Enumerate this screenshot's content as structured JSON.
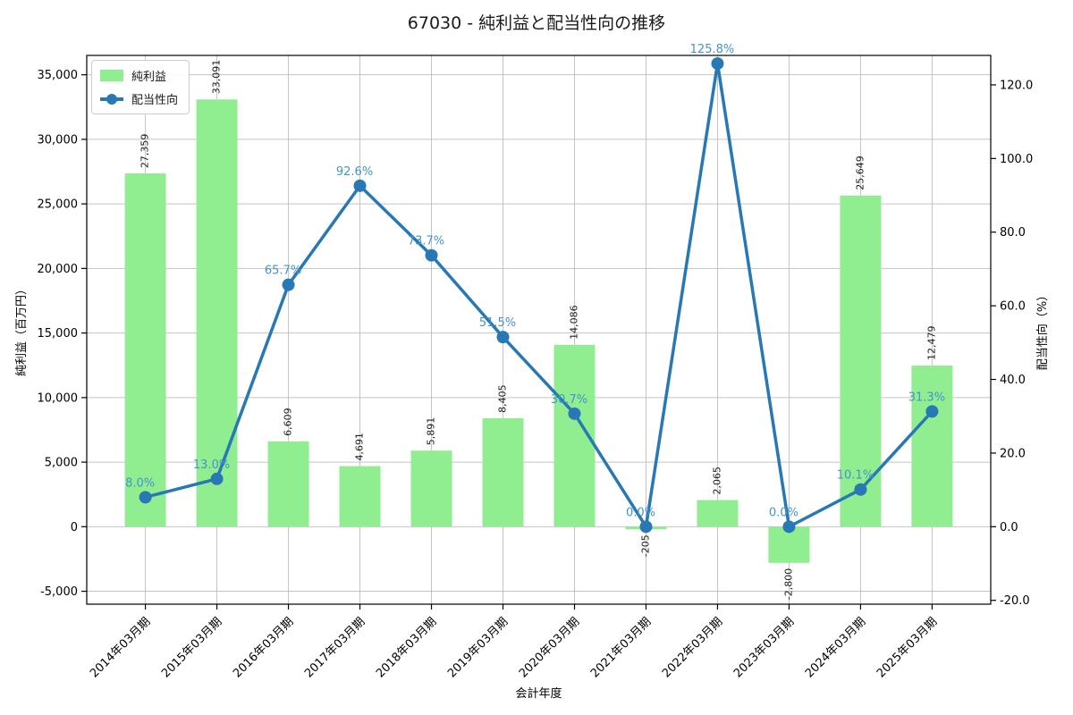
{
  "title": "67030 - 純利益と配当性向の推移",
  "colors": {
    "bar": "#90ee90",
    "line": "#2878b5",
    "point_label": "#4593c9",
    "grid": "#c3c3c3",
    "axis": "#000000",
    "bar_label": "#1a1a1a",
    "background": "#ffffff"
  },
  "chart_data": {
    "type": "bar+line",
    "title": "67030 - 純利益と配当性向の推移",
    "xlabel": "会計年度",
    "ylabel_left": "純利益（百万円）",
    "ylabel_right": "配当性向（%）",
    "grid": true,
    "legend_position": "top-left",
    "categories": [
      "2014年03月期",
      "2015年03月期",
      "2016年03月期",
      "2017年03月期",
      "2018年03月期",
      "2019年03月期",
      "2020年03月期",
      "2021年03月期",
      "2022年03月期",
      "2023年03月期",
      "2024年03月期",
      "2025年03月期"
    ],
    "series": [
      {
        "name": "純利益",
        "type": "bar",
        "axis": "left",
        "values": [
          27359,
          33091,
          6609,
          4691,
          5891,
          8405,
          14086,
          -205,
          2065,
          -2800,
          25649,
          12479
        ],
        "labels": [
          "27,359",
          "33,091",
          "6,609",
          "4,691",
          "5,891",
          "8,405",
          "14,086",
          "-205",
          "2,065",
          "-2,800",
          "25,649",
          "12,479"
        ]
      },
      {
        "name": "配当性向",
        "type": "line",
        "axis": "right",
        "values": [
          8.0,
          13.0,
          65.7,
          92.6,
          73.7,
          51.5,
          30.7,
          0.0,
          125.8,
          0.0,
          10.1,
          31.3
        ],
        "labels": [
          "8.0%",
          "13.0%",
          "65.7%",
          "92.6%",
          "73.7%",
          "51.5%",
          "30.7%",
          "0.0%",
          "125.8%",
          "0.0%",
          "10.1%",
          "31.3%"
        ]
      }
    ],
    "left_axis": {
      "range": [
        -6000,
        36500
      ],
      "ticks": [
        -5000,
        0,
        5000,
        10000,
        15000,
        20000,
        25000,
        30000,
        35000
      ],
      "tick_labels": [
        "-5,000",
        "0",
        "5,000",
        "10,000",
        "15,000",
        "20,000",
        "25,000",
        "30,000",
        "35,000"
      ]
    },
    "right_axis": {
      "range": [
        -21.04,
        128
      ],
      "ticks": [
        -20,
        0,
        20,
        40,
        60,
        80,
        100,
        120
      ],
      "tick_labels": [
        "-20.0",
        "0.0",
        "20.0",
        "40.0",
        "60.0",
        "80.0",
        "100.0",
        "120.0"
      ]
    }
  }
}
